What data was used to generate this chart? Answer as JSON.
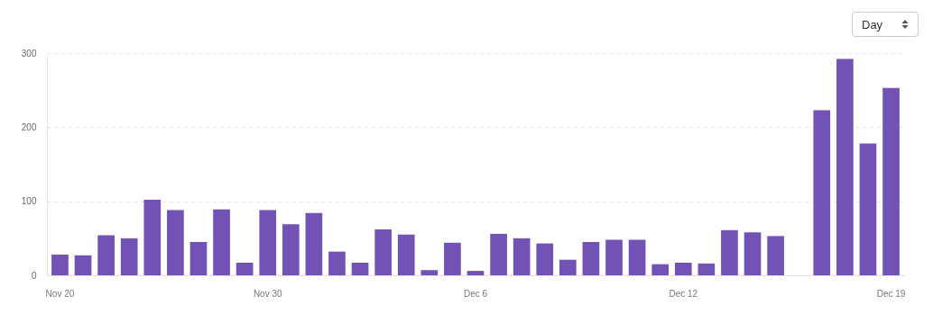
{
  "chart_data": {
    "type": "bar",
    "categories": [
      "Nov 20",
      null,
      null,
      null,
      null,
      null,
      null,
      null,
      null,
      "Nov 30",
      null,
      null,
      null,
      null,
      null,
      null,
      null,
      null,
      "Dec 6",
      null,
      null,
      null,
      null,
      null,
      null,
      null,
      null,
      "Dec 12",
      null,
      null,
      null,
      null,
      null,
      null,
      null,
      null,
      "Dec 19"
    ],
    "values": [
      28,
      27,
      54,
      50,
      102,
      88,
      45,
      89,
      17,
      88,
      69,
      84,
      32,
      17,
      62,
      55,
      7,
      44,
      6,
      56,
      50,
      43,
      21,
      45,
      48,
      48,
      15,
      17,
      16,
      61,
      58,
      53,
      null,
      223,
      292,
      178,
      253
    ],
    "color": "#7352b6",
    "ylim": [
      0,
      300
    ],
    "yticks": [
      0,
      100,
      200,
      300
    ],
    "grid": "y",
    "annotations": [
      "Day"
    ]
  }
}
